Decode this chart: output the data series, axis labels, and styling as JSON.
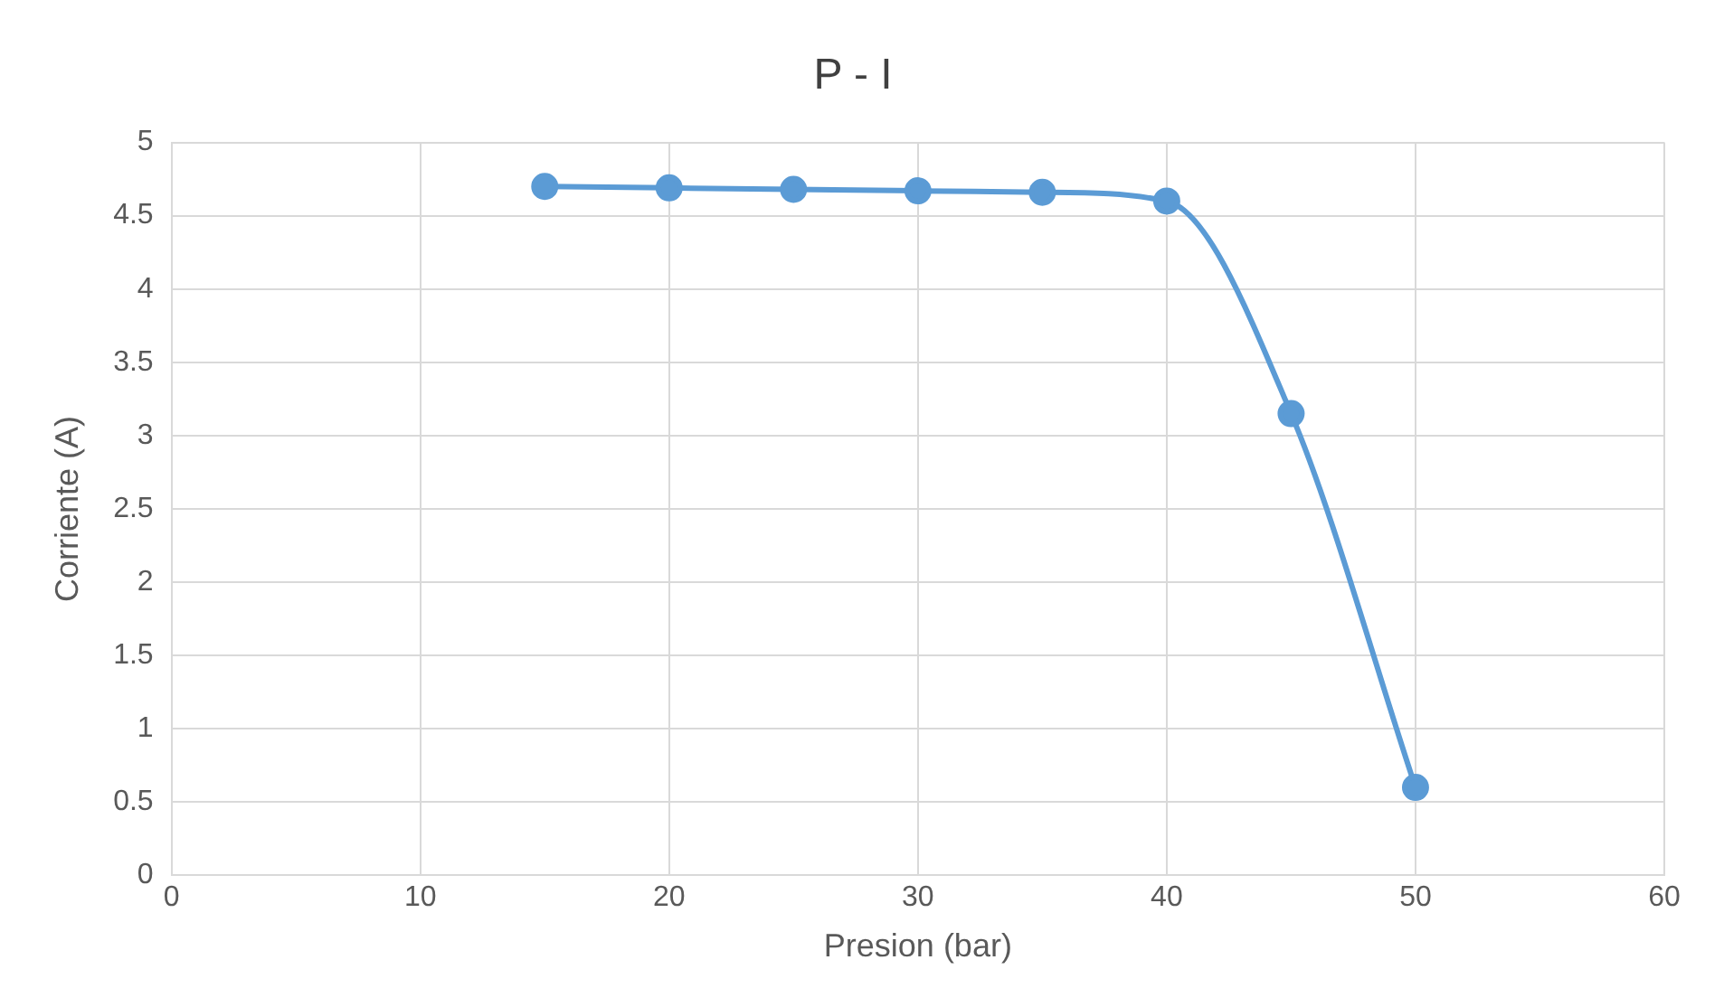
{
  "chart_data": {
    "type": "line",
    "title": "P - I",
    "xlabel": "Presion (bar)",
    "ylabel": "Corriente (A)",
    "x": [
      15,
      20,
      25,
      30,
      35,
      40,
      45,
      50
    ],
    "series": [
      {
        "color": "#5b9bd5",
        "values": [
          4.7,
          4.69,
          4.68,
          4.67,
          4.66,
          4.6,
          3.15,
          0.6
        ]
      }
    ],
    "xlim": [
      0,
      60
    ],
    "xticks": [
      0,
      10,
      20,
      30,
      40,
      50,
      60
    ],
    "ylim": [
      0,
      5
    ],
    "yticks": [
      0,
      0.5,
      1,
      1.5,
      2,
      2.5,
      3,
      3.5,
      4,
      4.5,
      5
    ],
    "grid": true,
    "legend": false,
    "marker": "circle",
    "line_style": "solid"
  }
}
